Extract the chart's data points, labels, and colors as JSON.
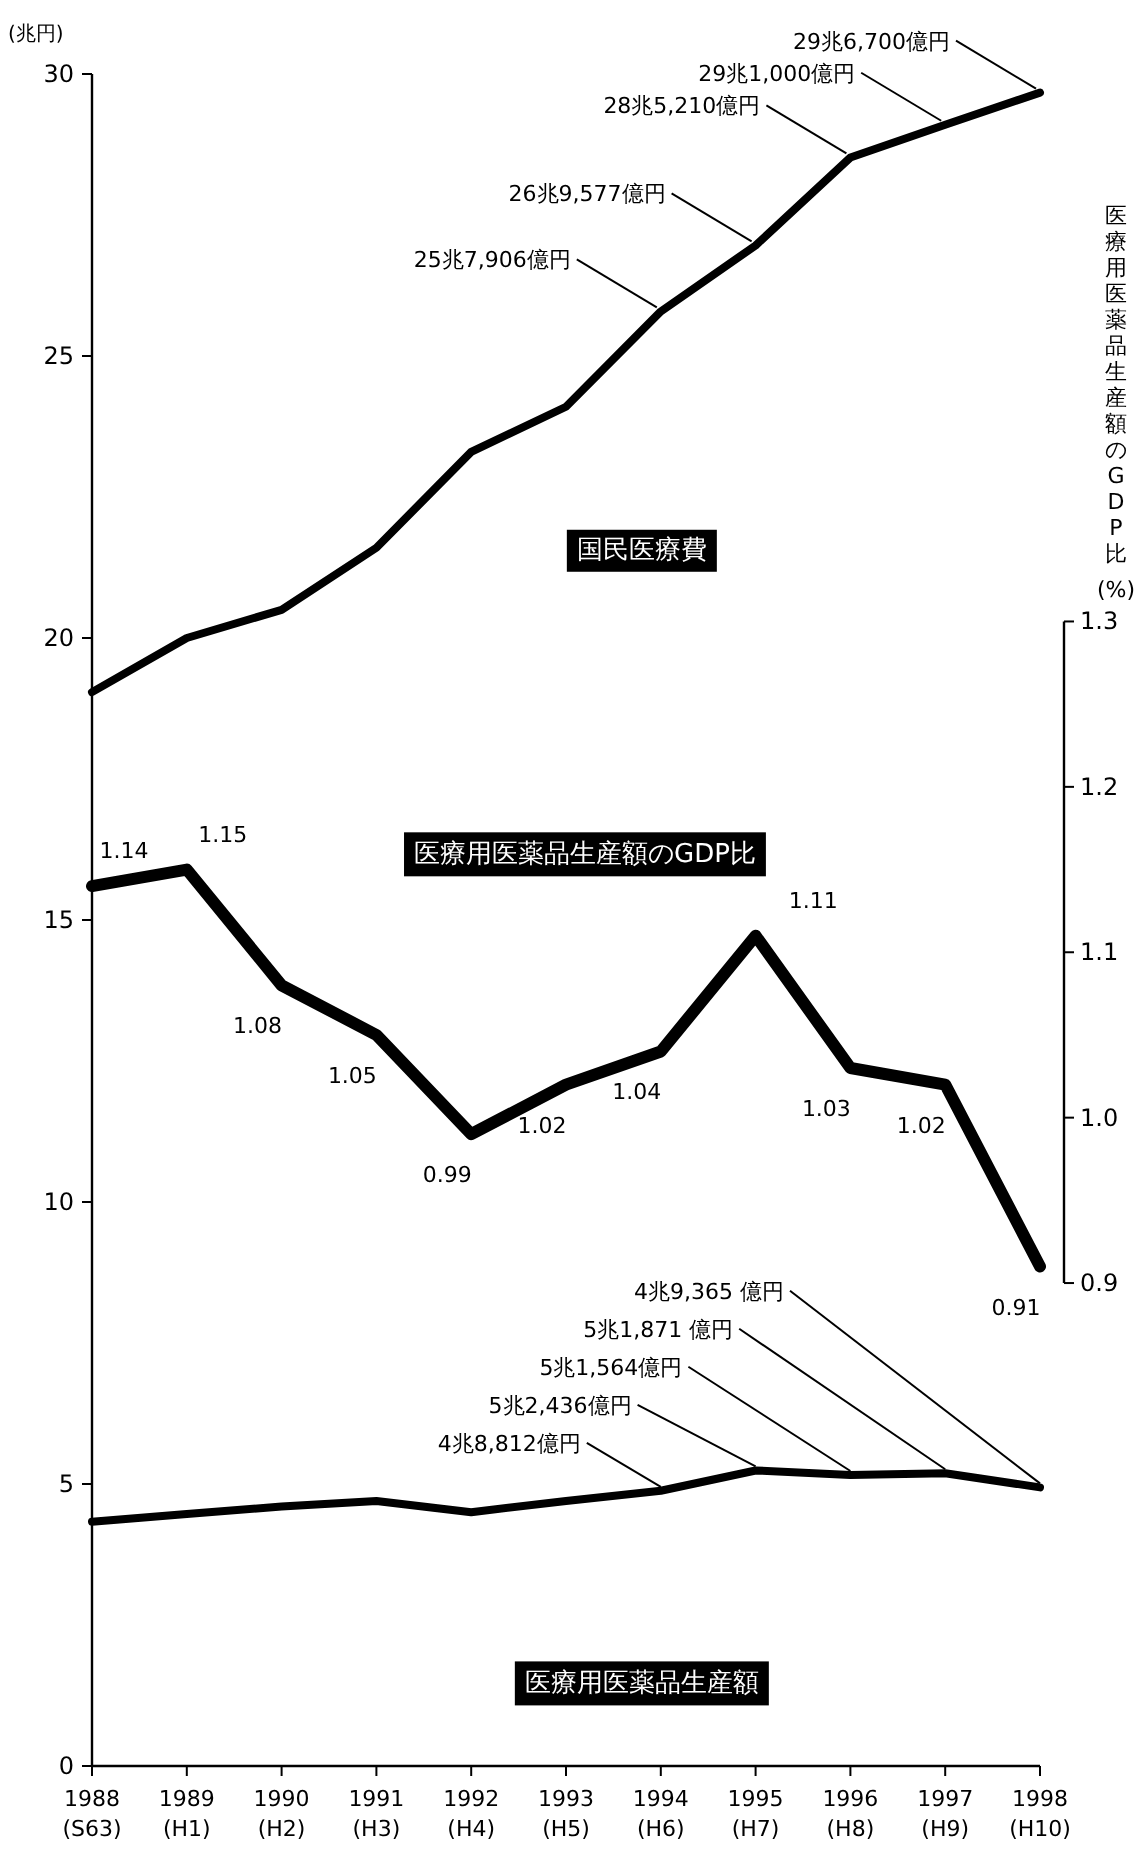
{
  "chart_data": {
    "type": "line",
    "ylabel": "(兆円)",
    "y2label": "医療用医薬品生産額のGDP比\n(%)",
    "categories": [
      "1988\n(S63)",
      "1989\n(H1)",
      "1990\n(H2)",
      "1991\n(H3)",
      "1992\n(H4)",
      "1993\n(H5)",
      "1994\n(H6)",
      "1995\n(H7)",
      "1996\n(H8)",
      "1997\n(H9)",
      "1998\n(H10)"
    ],
    "ylim": [
      0,
      30
    ],
    "yticks": [
      0,
      5,
      10,
      15,
      20,
      25,
      30
    ],
    "y2lim": [
      0.608,
      1.631
    ],
    "y2ticks": [
      {
        "value": 0.9,
        "label": "0.9"
      },
      {
        "value": 1.0,
        "label": "1.0"
      },
      1.1,
      1.2,
      1.3
    ],
    "marker": "none",
    "line_style": "solid",
    "series": [
      {
        "name": "国民医療費",
        "color": "#000000",
        "values": [
          19.04,
          20.0,
          20.5,
          21.6,
          23.3,
          24.1,
          25.79,
          26.96,
          28.52,
          29.1,
          29.67
        ]
      },
      {
        "name": "医療用医薬品生産額のGDP比",
        "color": "#000000",
        "axis": "y2",
        "values": [
          1.14,
          1.15,
          1.08,
          1.05,
          0.99,
          1.02,
          1.04,
          1.11,
          1.03,
          1.02,
          0.91
        ],
        "value_labels": [
          "1.14",
          "1.15",
          "1.08",
          "1.05",
          "0.99",
          "1.02",
          "1.04",
          "1.11",
          "1.03",
          "1.02",
          "0.91"
        ]
      },
      {
        "name": "医療用医薬品生産額",
        "color": "#000000",
        "values": [
          4.33,
          4.47,
          4.6,
          4.7,
          4.5,
          4.7,
          4.88,
          5.24,
          5.16,
          5.19,
          4.94
        ]
      }
    ],
    "annotations": [
      {
        "text": "25兆7,906億円",
        "x": "1994\n(H6)",
        "y": 25.79
      },
      {
        "text": "26兆9,577億円",
        "x": "1995\n(H7)",
        "y": 26.96
      },
      {
        "text": "28兆5,210億円",
        "x": "1996\n(H8)",
        "y": 28.52
      },
      {
        "text": "29兆1,000億円",
        "x": "1997\n(H9)",
        "y": 29.1
      },
      {
        "text": "29兆6,700億円",
        "x": "1998\n(H10)",
        "y": 29.67
      },
      {
        "text": "4兆8,812億円",
        "x": "1994\n(H6)",
        "y": 4.88
      },
      {
        "text": "5兆2,436億円",
        "x": "1995\n(H7)",
        "y": 5.24
      },
      {
        "text": "5兆1,564億円",
        "x": "1996\n(H8)",
        "y": 5.16
      },
      {
        "text": "5兆1,871 億円",
        "x": "1997\n(H9)",
        "y": 5.19
      },
      {
        "text": "4兆9,365 億円",
        "x": "1998\n(H10)",
        "y": 4.94
      }
    ]
  }
}
